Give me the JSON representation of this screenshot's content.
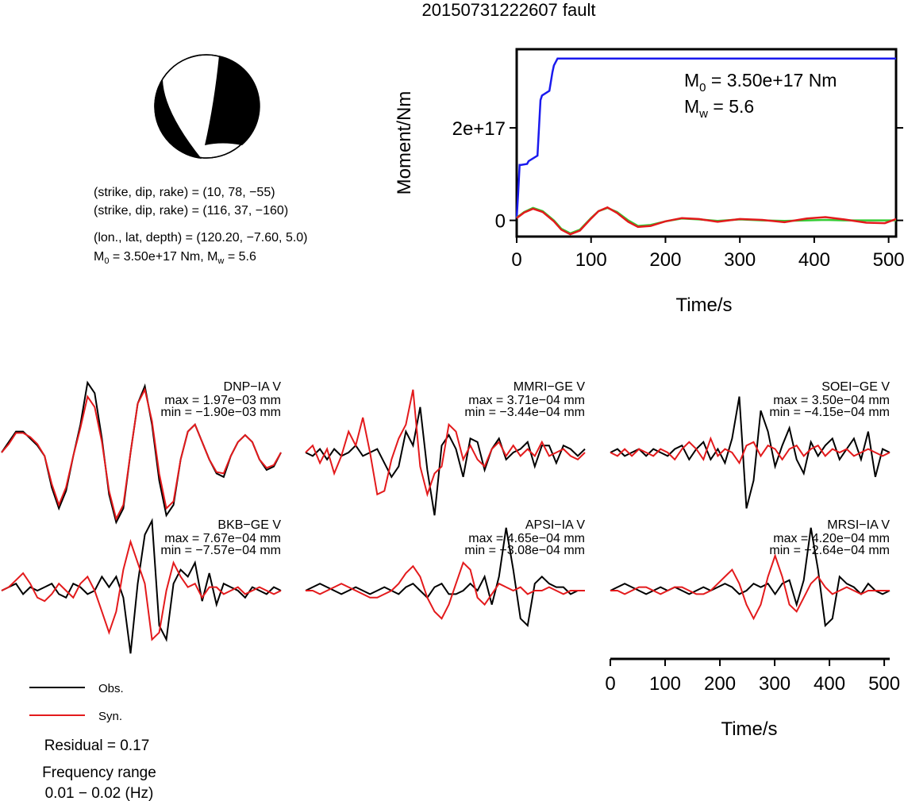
{
  "title": "20150731222607 fault",
  "mechanism": {
    "plane1": "(strike, dip, rake) = (10, 78, −55)",
    "plane2": "(strike, dip, rake) = (116, 37, −160)",
    "location": "(lon., lat, depth) = (120.20, −7.60, 5.0)",
    "moment_prefix": "M",
    "moment_sub": "0",
    "moment_mid": " = 3.50e+17 Nm, M",
    "moment_sub2": "w",
    "moment_end": " = 5.6"
  },
  "moment_panel": {
    "m0_prefix": "M",
    "m0_sub": "0",
    "m0_value": " = 3.50e+17 Nm",
    "mw_prefix": "M",
    "mw_sub": "w",
    "mw_value": " = 5.6",
    "ylabel": "Moment/Nm",
    "xlabel": "Time/s"
  },
  "legend": {
    "obs": "Obs.",
    "syn": "Syn.",
    "obs_color": "#000000",
    "syn_color": "#e31a1c"
  },
  "residual": "Residual = 0.17",
  "frequency_title": "Frequency range",
  "frequency_value": "0.01 − 0.02 (Hz)",
  "waveform_axis": {
    "xlabel": "Time/s"
  },
  "colors": {
    "moment_rate": "#1a1aee",
    "green": "#33cc33",
    "red": "#e31a1c",
    "black": "#000000"
  },
  "chart_data": [
    {
      "type": "line",
      "title": "",
      "xlabel": "Time/s",
      "ylabel": "Moment/Nm",
      "xlim": [
        0,
        510
      ],
      "ylim": [
        -3.5e+16,
        3.7e+17
      ],
      "xticks": [
        0,
        100,
        200,
        300,
        400,
        500
      ],
      "yticks": [
        0,
        2e+17
      ],
      "ytick_labels": [
        "0",
        "2e+17"
      ],
      "series": [
        {
          "color": "#1a1aee",
          "x": [
            0,
            2,
            4,
            6,
            14,
            16,
            28,
            30,
            32,
            34,
            44,
            46,
            48,
            50,
            55,
            510
          ],
          "y": [
            5000000000000000.0,
            6e+16,
            1.2e+17,
            1.2e+17,
            1.22e+17,
            1.28e+17,
            1.4e+17,
            2e+17,
            2.6e+17,
            2.7e+17,
            2.8e+17,
            3e+17,
            3.2e+17,
            3.35e+17,
            3.5e+17,
            3.5e+17
          ]
        },
        {
          "color": "#33cc33",
          "x": [
            0,
            10,
            22,
            35,
            50,
            60,
            72,
            85,
            100,
            110,
            122,
            135,
            150,
            163,
            180,
            200,
            222,
            245,
            270,
            300,
            330,
            360,
            390,
            415,
            440,
            470,
            495,
            510
          ],
          "y": [
            6000000000000000.0,
            1.8e+16,
            2.7e+16,
            2e+16,
            0.0,
            -1.8e+16,
            -2.8e+16,
            -2e+16,
            5000000000000000.0,
            2e+16,
            2.7e+16,
            1.8e+16,
            0.0,
            -1.2e+16,
            -1e+16,
            -2000000000000000.0,
            4000000000000000.0,
            2000000000000000.0,
            -1000000000000000.0,
            2000000000000000.0,
            0.0,
            -1000000000000000.0,
            0.0,
            1000000000000000.0,
            0.0,
            0.0,
            0.0,
            0.0
          ]
        },
        {
          "color": "#e31a1c",
          "x": [
            0,
            10,
            22,
            35,
            50,
            60,
            72,
            85,
            100,
            110,
            122,
            135,
            150,
            163,
            180,
            200,
            222,
            245,
            270,
            300,
            330,
            360,
            390,
            415,
            440,
            470,
            495,
            510
          ],
          "y": [
            5000000000000000.0,
            1.7e+16,
            2.5e+16,
            1.8e+16,
            -2000000000000000.0,
            -2e+16,
            -3e+16,
            -2.2e+16,
            4000000000000000.0,
            2e+16,
            2.8e+16,
            1.6e+16,
            -3000000000000000.0,
            -1.4e+16,
            -1.2e+16,
            -2000000000000000.0,
            5000000000000000.0,
            3000000000000000.0,
            -3000000000000000.0,
            3000000000000000.0,
            1000000000000000.0,
            -4000000000000000.0,
            4000000000000000.0,
            7000000000000000.0,
            2000000000000000.0,
            -5000000000000000.0,
            -6000000000000000.0,
            3000000000000000.0
          ]
        }
      ]
    },
    {
      "type": "line",
      "xlabel": "Time/s",
      "xlim": [
        0,
        510
      ],
      "xticks": [
        0,
        100,
        200,
        300,
        400,
        500
      ],
      "stations": [
        {
          "name": "DNP−IA V",
          "max": "max = 1.97e−03 mm",
          "min": "min = −1.90e−03 mm",
          "obs": [
            0.0,
            0.15,
            0.3,
            0.3,
            0.2,
            0.1,
            -0.05,
            -0.5,
            -0.8,
            -0.55,
            -0.05,
            0.4,
            1.0,
            0.85,
            0.2,
            -0.6,
            -1.0,
            -0.8,
            0.0,
            0.7,
            0.95,
            0.4,
            -0.4,
            -0.9,
            -0.75,
            -0.1,
            0.3,
            0.4,
            0.15,
            -0.1,
            -0.3,
            -0.35,
            -0.05,
            0.15,
            0.25,
            0.15,
            -0.1,
            -0.25,
            -0.2,
            0.0
          ],
          "syn": [
            0.0,
            0.12,
            0.28,
            0.28,
            0.22,
            0.12,
            -0.05,
            -0.45,
            -0.75,
            -0.5,
            -0.05,
            0.35,
            0.8,
            0.65,
            0.15,
            -0.55,
            -0.95,
            -0.75,
            0.0,
            0.7,
            0.9,
            0.45,
            -0.3,
            -0.8,
            -0.7,
            -0.1,
            0.3,
            0.4,
            0.15,
            -0.1,
            -0.28,
            -0.3,
            -0.05,
            0.15,
            0.25,
            0.15,
            -0.1,
            -0.22,
            -0.18,
            0.0
          ]
        },
        {
          "name": "MMRI−GE V",
          "max": "max = 3.71e−04 mm",
          "min": "min = −3.44e−04 mm",
          "obs": [
            0.0,
            -0.05,
            0.05,
            -0.1,
            0.05,
            -0.05,
            0.0,
            0.1,
            -0.05,
            0.0,
            0.05,
            -0.15,
            -0.35,
            -0.2,
            0.3,
            0.1,
            0.65,
            -0.25,
            -0.9,
            0.1,
            0.25,
            0.05,
            -0.35,
            0.2,
            0.15,
            -0.25,
            0.05,
            0.2,
            -0.1,
            0.0,
            0.05,
            0.15,
            -0.2,
            0.1,
            0.1,
            -0.15,
            0.1,
            0.05,
            -0.05,
            0.05
          ],
          "syn": [
            0.0,
            0.1,
            -0.15,
            0.05,
            -0.3,
            -0.05,
            0.3,
            0.1,
            0.5,
            0.0,
            -0.6,
            -0.55,
            -0.1,
            0.2,
            0.4,
            0.9,
            -0.2,
            -0.6,
            -0.3,
            -0.2,
            0.4,
            0.3,
            -0.1,
            0.1,
            -0.1,
            -0.2,
            0.05,
            0.15,
            -0.05,
            0.1,
            -0.05,
            0.05,
            -0.05,
            0.15,
            -0.05,
            0.0,
            0.05,
            -0.05,
            -0.1,
            0.0
          ],
          "obs_pos": 0.0,
          "syn_pos": 0.0
        },
        {
          "name": "SOEI−GE V",
          "max": "max = 3.50e−04 mm",
          "min": "min = −4.15e−04 mm",
          "obs": [
            0.0,
            0.05,
            -0.05,
            0.0,
            0.05,
            -0.05,
            0.05,
            0.0,
            -0.05,
            0.05,
            0.1,
            -0.1,
            0.05,
            0.15,
            -0.1,
            0.05,
            -0.15,
            0.2,
            0.8,
            -0.8,
            -0.4,
            0.6,
            0.3,
            -0.2,
            0.1,
            0.35,
            -0.1,
            -0.3,
            0.15,
            -0.05,
            0.1,
            0.2,
            -0.1,
            0.05,
            0.2,
            -0.1,
            0.3,
            -0.35,
            0.05,
            0.0
          ],
          "syn": [
            0.0,
            -0.05,
            0.05,
            -0.05,
            0.05,
            0.0,
            -0.05,
            0.05,
            0.0,
            -0.1,
            0.05,
            0.15,
            0.05,
            -0.1,
            0.2,
            -0.05,
            0.05,
            0.0,
            -0.15,
            0.1,
            0.15,
            -0.05,
            0.1,
            0.05,
            -0.1,
            0.05,
            0.1,
            -0.05,
            0.05,
            0.1,
            -0.05,
            0.05,
            0.0,
            0.05,
            -0.05,
            0.0,
            0.05,
            0.0,
            -0.05,
            0.0
          ]
        },
        {
          "name": "BKB−GE V",
          "max": "max = 7.67e−04 mm",
          "min": "min = −7.57e−04 mm",
          "obs": [
            0.0,
            0.05,
            0.1,
            -0.05,
            0.05,
            0.0,
            0.05,
            0.1,
            -0.05,
            -0.1,
            0.1,
            0.05,
            -0.05,
            0.0,
            0.2,
            0.05,
            0.2,
            -0.1,
            -0.9,
            0.1,
            0.8,
            1.0,
            -0.5,
            -0.7,
            0.1,
            0.3,
            0.2,
            0.4,
            -0.15,
            0.25,
            -0.2,
            0.1,
            0.05,
            0.0,
            -0.1,
            0.05,
            0.0,
            -0.05,
            0.05,
            0.0
          ],
          "syn": [
            0.0,
            0.05,
            0.15,
            0.25,
            0.1,
            -0.1,
            -0.15,
            -0.05,
            0.1,
            0.0,
            -0.1,
            0.1,
            0.2,
            0.0,
            -0.3,
            -0.6,
            -0.3,
            0.3,
            0.7,
            0.4,
            0.1,
            -0.7,
            -0.6,
            0.0,
            0.4,
            0.2,
            0.05,
            0.1,
            -0.1,
            0.05,
            0.05,
            -0.05,
            0.0,
            0.05,
            -0.05,
            0.0,
            0.05,
            0.0,
            -0.05,
            0.0
          ]
        },
        {
          "name": "APSI−IA V",
          "max": "max = 4.65e−04 mm",
          "min": "min = −3.08e−04 mm",
          "obs": [
            0.0,
            0.05,
            0.1,
            0.05,
            0.0,
            -0.05,
            0.0,
            0.05,
            0.0,
            -0.05,
            0.0,
            0.05,
            0.0,
            -0.05,
            0.05,
            0.1,
            0.0,
            -0.1,
            0.05,
            0.1,
            -0.05,
            -0.05,
            0.0,
            0.1,
            0.0,
            0.2,
            -0.2,
            0.2,
            0.9,
            0.3,
            -0.4,
            -0.5,
            0.1,
            0.2,
            0.1,
            0.05,
            0.05,
            -0.05,
            0.0,
            0.0
          ],
          "syn": [
            0.0,
            0.0,
            -0.05,
            0.0,
            0.05,
            0.1,
            0.05,
            0.0,
            -0.05,
            -0.1,
            -0.1,
            -0.05,
            0.0,
            0.1,
            0.25,
            0.35,
            0.2,
            -0.1,
            -0.3,
            -0.4,
            -0.2,
            0.1,
            0.4,
            0.3,
            -0.1,
            -0.2,
            -0.05,
            0.1,
            0.05,
            0.0,
            0.05,
            -0.05,
            0.0,
            0.0,
            0.05,
            0.0,
            -0.05,
            0.0,
            0.0,
            0.0
          ]
        },
        {
          "name": "MRSI−IA V",
          "max": "max = 4.20e−04 mm",
          "min": "min = −2.64e−04 mm",
          "obs": [
            0.0,
            0.05,
            0.1,
            0.05,
            0.0,
            -0.05,
            0.0,
            0.05,
            0.0,
            0.05,
            0.0,
            -0.05,
            0.0,
            0.05,
            0.0,
            0.05,
            0.1,
            0.05,
            -0.05,
            0.0,
            0.1,
            0.05,
            0.1,
            -0.05,
            0.1,
            0.15,
            -0.2,
            0.15,
            0.9,
            0.3,
            -0.5,
            -0.4,
            0.2,
            0.1,
            0.05,
            -0.05,
            0.1,
            0.0,
            -0.05,
            0.0
          ],
          "syn": [
            0.0,
            0.0,
            -0.05,
            0.0,
            0.05,
            0.05,
            0.0,
            -0.05,
            0.0,
            0.05,
            0.05,
            0.0,
            -0.05,
            -0.05,
            0.0,
            0.1,
            0.2,
            0.3,
            0.1,
            -0.2,
            -0.4,
            -0.2,
            0.2,
            0.5,
            0.2,
            -0.2,
            -0.3,
            -0.1,
            0.1,
            0.2,
            0.05,
            -0.05,
            0.0,
            0.05,
            0.0,
            -0.05,
            0.0,
            0.0,
            0.0,
            0.0
          ]
        }
      ]
    }
  ]
}
